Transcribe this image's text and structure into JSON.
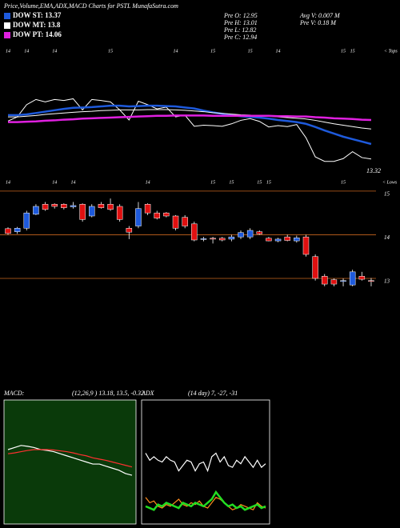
{
  "header": {
    "title": "Price,Volume,EMA,ADX,MACD Charts for PSTL MunafaSutra.com",
    "stats": [
      "Pre O: 12.95",
      "Pre H: 13.01",
      "Pre L: 12.82",
      "Pre C: 12.94",
      "Avg V: 0.007 M",
      "Pre V: 0.18 M"
    ]
  },
  "chart_data": [
    {
      "type": "line",
      "ylim": [
        12.22,
        16.13
      ],
      "last_price_label": "13.32",
      "tops_label": "< Tops",
      "lows_label": "< Lows",
      "series": [
        {
          "name": "DOW ST: 13.37",
          "color": "#1e5adc",
          "values": [
            14.2,
            14.2,
            14.22,
            14.26,
            14.3,
            14.34,
            14.38,
            14.41,
            14.42,
            14.43,
            14.45,
            14.47,
            14.47,
            14.45,
            14.46,
            14.47,
            14.47,
            14.46,
            14.45,
            14.42,
            14.39,
            14.33,
            14.28,
            14.24,
            14.2,
            14.17,
            14.15,
            14.13,
            14.1,
            14.06,
            14.03,
            14.0,
            13.95,
            13.86,
            13.76,
            13.67,
            13.58,
            13.51,
            13.44,
            13.37
          ]
        },
        {
          "name": "DOW MT: 13.8",
          "color": "#ffffff",
          "values": [
            14.15,
            14.15,
            14.17,
            14.19,
            14.22,
            14.24,
            14.26,
            14.28,
            14.3,
            14.31,
            14.33,
            14.34,
            14.35,
            14.35,
            14.35,
            14.36,
            14.36,
            14.36,
            14.35,
            14.34,
            14.32,
            14.3,
            14.27,
            14.25,
            14.23,
            14.21,
            14.2,
            14.18,
            14.17,
            14.15,
            14.13,
            14.11,
            14.09,
            14.05,
            14.0,
            13.95,
            13.91,
            13.87,
            13.83,
            13.8
          ]
        },
        {
          "name": "DOW PT: 14.06",
          "color": "#e020e0",
          "values": [
            14.0,
            14.0,
            14.01,
            14.02,
            14.04,
            14.05,
            14.07,
            14.08,
            14.1,
            14.11,
            14.12,
            14.13,
            14.14,
            14.15,
            14.16,
            14.17,
            14.18,
            14.18,
            14.19,
            14.19,
            14.19,
            14.19,
            14.18,
            14.18,
            14.18,
            14.18,
            14.18,
            14.18,
            14.18,
            14.17,
            14.17,
            14.16,
            14.16,
            14.14,
            14.13,
            14.11,
            14.1,
            14.09,
            14.07,
            14.06
          ]
        }
      ]
    },
    {
      "type": "candlestick",
      "up_color": "#1e5adc",
      "down_color": "#e01010",
      "grid_color": "#c8641e",
      "ylim": [
        12.45,
        15.2
      ],
      "yticks": [
        13,
        14,
        15
      ],
      "open": [
        14.14,
        14.07,
        14.15,
        14.47,
        14.7,
        14.7,
        14.7,
        14.64,
        14.7,
        14.43,
        14.7,
        14.7,
        14.65,
        14.15,
        14.2,
        14.7,
        14.5,
        14.5,
        14.43,
        14.4,
        14.25,
        13.9,
        13.92,
        13.92,
        13.9,
        13.95,
        13.95,
        14.07,
        13.92,
        13.86,
        13.95,
        13.86,
        13.95,
        13.5,
        13.05,
        12.97,
        12.93,
        12.85,
        13.05,
        12.95
      ],
      "high": [
        14.17,
        14.18,
        14.55,
        14.7,
        14.75,
        14.72,
        14.72,
        14.75,
        14.72,
        14.7,
        14.75,
        14.83,
        14.7,
        14.2,
        14.75,
        14.72,
        14.55,
        14.52,
        14.45,
        14.45,
        14.3,
        13.95,
        13.95,
        13.95,
        14.0,
        14.1,
        14.15,
        14.1,
        13.95,
        13.93,
        14.0,
        13.98,
        14.0,
        13.55,
        13.1,
        13.0,
        13.0,
        13.2,
        13.15,
        13.01
      ],
      "low": [
        14.0,
        14.02,
        14.1,
        14.45,
        14.55,
        14.6,
        14.58,
        14.6,
        14.3,
        14.4,
        14.6,
        14.55,
        14.3,
        13.9,
        14.15,
        14.45,
        14.35,
        14.4,
        14.1,
        14.15,
        13.85,
        13.85,
        13.8,
        13.85,
        13.85,
        13.9,
        13.9,
        14.0,
        13.85,
        13.83,
        13.85,
        13.82,
        13.5,
        12.95,
        12.82,
        12.82,
        12.82,
        12.82,
        12.95,
        12.82
      ],
      "close": [
        14.03,
        14.15,
        14.5,
        14.65,
        14.58,
        14.65,
        14.62,
        14.67,
        14.35,
        14.65,
        14.62,
        14.58,
        14.35,
        14.06,
        14.6,
        14.5,
        14.38,
        14.43,
        14.15,
        14.2,
        13.88,
        13.91,
        13.9,
        13.88,
        13.95,
        14.05,
        14.1,
        14.02,
        13.86,
        13.9,
        13.87,
        13.93,
        13.55,
        13.0,
        12.87,
        12.87,
        12.95,
        13.15,
        12.98,
        12.94
      ],
      "top_labels": [
        14,
        null,
        14,
        null,
        null,
        14,
        null,
        null,
        null,
        null,
        null,
        15,
        null,
        null,
        null,
        null,
        null,
        null,
        14,
        null,
        null,
        null,
        15,
        null,
        null,
        null,
        15,
        null,
        null,
        14,
        null,
        null,
        null,
        null,
        null,
        null,
        15,
        15,
        null,
        null
      ],
      "low_labels": [
        14,
        null,
        null,
        null,
        null,
        14,
        null,
        14,
        null,
        null,
        null,
        null,
        null,
        null,
        null,
        14,
        null,
        null,
        null,
        null,
        null,
        null,
        15,
        null,
        15,
        null,
        null,
        15,
        15,
        null,
        null,
        null,
        null,
        null,
        null,
        null,
        15,
        null,
        null,
        null
      ]
    },
    {
      "type": "macd",
      "title": "MACD:",
      "subtitle": "(12,26,9 ) 13.18, 13.5, -0.32",
      "ylim": [
        -1.5,
        1.5
      ],
      "background": "#0a3a0a",
      "series": [
        {
          "color": "#ffffff",
          "values": [
            0.3,
            0.35,
            0.4,
            0.38,
            0.35,
            0.3,
            0.28,
            0.25,
            0.2,
            0.15,
            0.1,
            0.05,
            0,
            -0.05,
            -0.05,
            -0.1,
            -0.15,
            -0.2,
            -0.28,
            -0.32
          ]
        },
        {
          "color": "#ff3030",
          "values": [
            0.2,
            0.22,
            0.25,
            0.28,
            0.3,
            0.3,
            0.3,
            0.29,
            0.27,
            0.25,
            0.22,
            0.18,
            0.15,
            0.1,
            0.07,
            0.04,
            0,
            -0.04,
            -0.08,
            -0.12
          ]
        }
      ]
    },
    {
      "type": "adx",
      "title": "ADX",
      "subtitle": "(14 day) 7, -27, -31",
      "ylim": [
        0,
        70
      ],
      "background": "#000000",
      "series": [
        {
          "color": "#ffffff",
          "values": [
            40,
            36,
            38,
            36,
            35,
            38,
            36,
            35,
            30,
            33,
            36,
            35,
            30,
            34,
            35,
            30,
            38,
            40,
            35,
            38,
            33,
            32,
            36,
            34,
            38,
            35,
            32,
            36,
            32,
            34
          ]
        },
        {
          "color": "#ff8c1e",
          "values": [
            15,
            12,
            13,
            10,
            9,
            11,
            10,
            12,
            14,
            11,
            10,
            12,
            11,
            13,
            10,
            9,
            12,
            15,
            14,
            12,
            10,
            8,
            9,
            11,
            10,
            9,
            8,
            12,
            10,
            9
          ]
        },
        {
          "color": "#22dd22",
          "values": [
            10,
            9,
            8,
            11,
            10,
            12,
            11,
            10,
            9,
            12,
            11,
            10,
            12,
            11,
            10,
            12,
            14,
            18,
            15,
            12,
            10,
            11,
            9,
            10,
            8,
            9,
            10,
            11,
            9,
            10
          ]
        }
      ]
    }
  ]
}
